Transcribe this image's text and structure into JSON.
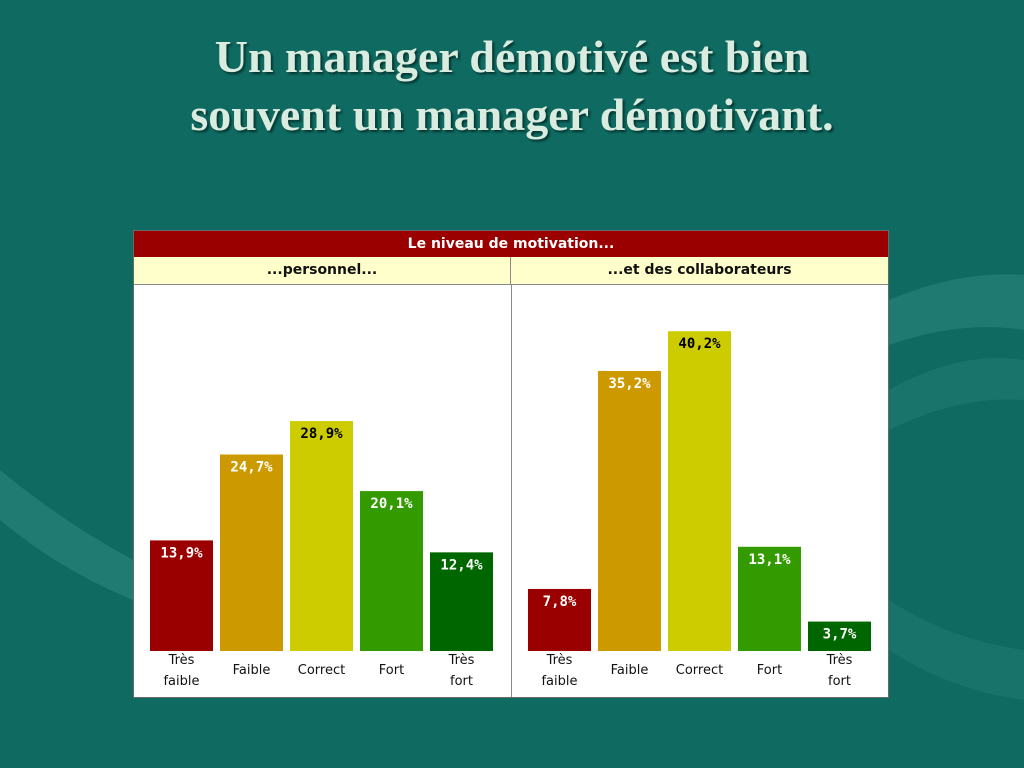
{
  "slide": {
    "title_line1": "Un manager démotivé est bien",
    "title_line2": "souvent un manager démotivant."
  },
  "panel": {
    "header": "Le niveau de motivation...",
    "left_subtitle": "...personnel...",
    "right_subtitle": "...et des collaborateurs"
  },
  "colors": {
    "background": "#0f6b62",
    "header": "#9b0000",
    "subheader": "#ffffcc",
    "bars": [
      "#9b0000",
      "#cc9a00",
      "#cccc00",
      "#339a00",
      "#006600"
    ]
  },
  "chart_data": [
    {
      "type": "bar",
      "title": "...personnel...",
      "categories": [
        [
          "Très",
          "faible"
        ],
        [
          "Faible"
        ],
        [
          "Correct"
        ],
        [
          "Fort"
        ],
        [
          "Très",
          "fort"
        ]
      ],
      "values": [
        13.9,
        24.7,
        28.9,
        20.1,
        12.4
      ],
      "labels": [
        "13,9%",
        "24,7%",
        "28,9%",
        "20,1%",
        "12,4%"
      ],
      "ylim": [
        0,
        45
      ],
      "grid": false
    },
    {
      "type": "bar",
      "title": "...et des collaborateurs",
      "categories": [
        [
          "Très",
          "faible"
        ],
        [
          "Faible"
        ],
        [
          "Correct"
        ],
        [
          "Fort"
        ],
        [
          "Très",
          "fort"
        ]
      ],
      "values": [
        7.8,
        35.2,
        40.2,
        13.1,
        3.7
      ],
      "labels": [
        "7,8%",
        "35,2%",
        "40,2%",
        "13,1%",
        "3,7%"
      ],
      "ylim": [
        0,
        45
      ],
      "grid": false
    }
  ]
}
